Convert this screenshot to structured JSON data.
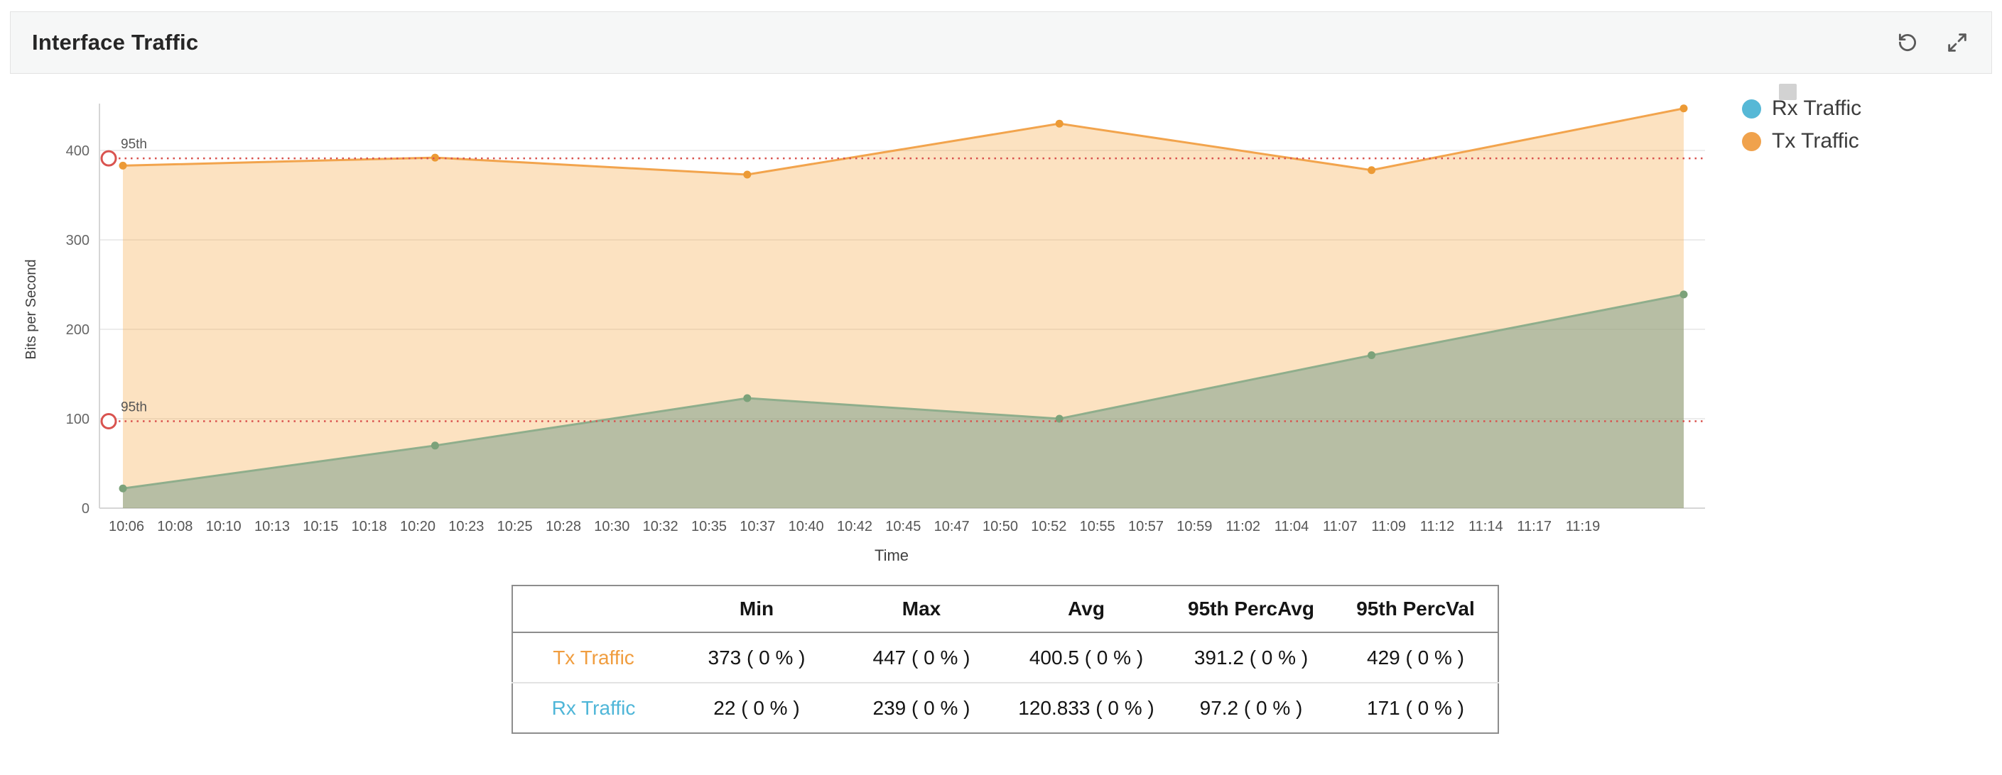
{
  "header": {
    "title": "Interface Traffic",
    "history_icon": "history-icon",
    "expand_icon": "expand-icon"
  },
  "legend": {
    "items": [
      {
        "label": "Rx Traffic",
        "color": "#56b8d6"
      },
      {
        "label": "Tx Traffic",
        "color": "#f0a24c"
      }
    ]
  },
  "chart_data": {
    "type": "area",
    "title": "",
    "xlabel": "Time",
    "ylabel": "Bits per Second",
    "ylim": [
      0,
      450
    ],
    "yticks": [
      0,
      100,
      200,
      300,
      400
    ],
    "grid": true,
    "legend_position": "top-right",
    "x_tick_labels": [
      "10:06",
      "10:08",
      "10:10",
      "10:13",
      "10:15",
      "10:18",
      "10:20",
      "10:23",
      "10:25",
      "10:28",
      "10:30",
      "10:32",
      "10:35",
      "10:37",
      "10:40",
      "10:42",
      "10:45",
      "10:47",
      "10:50",
      "10:52",
      "10:55",
      "10:57",
      "10:59",
      "11:02",
      "11:04",
      "11:07",
      "11:09",
      "11:12",
      "11:14",
      "11:17",
      "11:19"
    ],
    "point_times": [
      "10:06",
      "10:21",
      "10:36",
      "10:51",
      "11:06",
      "11:21"
    ],
    "series": [
      {
        "name": "Tx Traffic",
        "line_color": "#f2a44d",
        "dot_color": "#ec9a35",
        "fill": "rgba(246,168,66,0.33)",
        "values": [
          383,
          392,
          373,
          430,
          378,
          447
        ]
      },
      {
        "name": "Rx Traffic",
        "line_color": "#8fae8c",
        "dot_color": "#7ca27a",
        "fill": "rgba(125,160,140,0.55)",
        "values": [
          22,
          70,
          123,
          100,
          171,
          239
        ]
      }
    ],
    "percentile_lines": [
      {
        "label": "95th",
        "value": 391.2,
        "color": "#d9534f"
      },
      {
        "label": "95th",
        "value": 97.2,
        "color": "#d9534f"
      }
    ]
  },
  "table": {
    "columns": [
      "",
      "Min",
      "Max",
      "Avg",
      "95th PercAvg",
      "95th PercVal"
    ],
    "rows": [
      {
        "label": "Tx Traffic",
        "label_color": "#f09d3f",
        "values": [
          "373 ( 0 % )",
          "447 ( 0 % )",
          "400.5 ( 0 % )",
          "391.2 ( 0 % )",
          "429 ( 0 % )"
        ]
      },
      {
        "label": "Rx Traffic",
        "label_color": "#4fb6d8",
        "values": [
          "22 ( 0 % )",
          "239 ( 0 % )",
          "120.833 ( 0 % )",
          "97.2 ( 0 % )",
          "171 ( 0 % )"
        ]
      }
    ]
  }
}
